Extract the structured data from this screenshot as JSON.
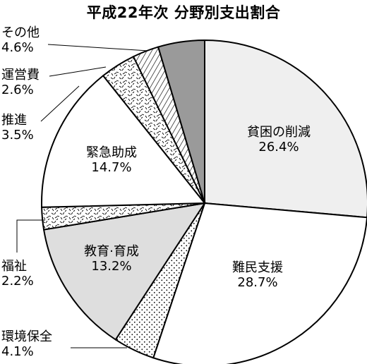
{
  "chart_data": {
    "type": "pie",
    "title": "平成22年次  分野別支出割合",
    "slices": [
      {
        "name": "貧困の削減",
        "value_label": "26.4%",
        "value": 26.4,
        "fill": "#efefef",
        "pattern": "none"
      },
      {
        "name": "難民支援",
        "value_label": "28.7%",
        "value": 28.7,
        "fill": "#ffffff",
        "pattern": "none"
      },
      {
        "name": "環境保全",
        "value_label": "4.1%",
        "value": 4.1,
        "fill": "#ffffff",
        "pattern": "dots"
      },
      {
        "name": "教育·育成",
        "value_label": "13.2%",
        "value": 13.2,
        "fill": "#dedede",
        "pattern": "none"
      },
      {
        "name": "福祉",
        "value_label": "2.2%",
        "value": 2.2,
        "fill": "#ffffff",
        "pattern": "speckle"
      },
      {
        "name": "緊急助成",
        "value_label": "14.7%",
        "value": 14.7,
        "fill": "#ffffff",
        "pattern": "none"
      },
      {
        "name": "推進",
        "value_label": "3.5%",
        "value": 3.5,
        "fill": "#ffffff",
        "pattern": "speckle"
      },
      {
        "name": "運営費",
        "value_label": "2.6%",
        "value": 2.6,
        "fill": "#ffffff",
        "pattern": "hatch"
      },
      {
        "name": "その他",
        "value_label": "4.6%",
        "value": 4.6,
        "fill": "#9a9a9a",
        "pattern": "none"
      }
    ]
  }
}
